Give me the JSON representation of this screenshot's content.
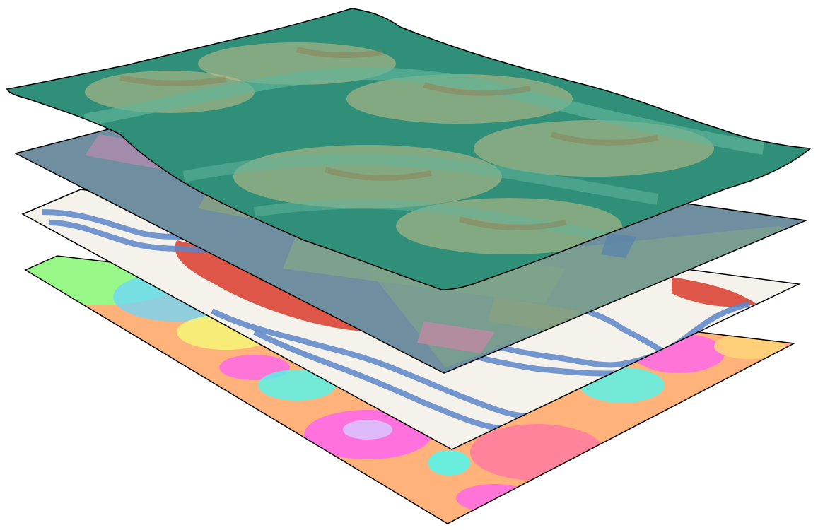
{
  "figure": {
    "layers": [
      {
        "id": "geophysical-anomaly-layer",
        "palette": [
          "#ff6ae8",
          "#ff7aa0",
          "#ffd27a",
          "#f6ff7a",
          "#8dff8a",
          "#58f2e6",
          "#6bd7ff"
        ]
      },
      {
        "id": "distance-bands-layer",
        "palette": [
          "#d83b2a",
          "#ffffff",
          "#5a86c8"
        ]
      },
      {
        "id": "geology-map-layer",
        "palette": [
          "#6f8fa0",
          "#7fa58a",
          "#8aa27e",
          "#b48ab0",
          "#c08aa3",
          "#5e86a8"
        ]
      },
      {
        "id": "terrain-relief-layer",
        "palette": [
          "#2f8f78",
          "#63b59a",
          "#c9c08a",
          "#8d7a52"
        ]
      }
    ]
  }
}
